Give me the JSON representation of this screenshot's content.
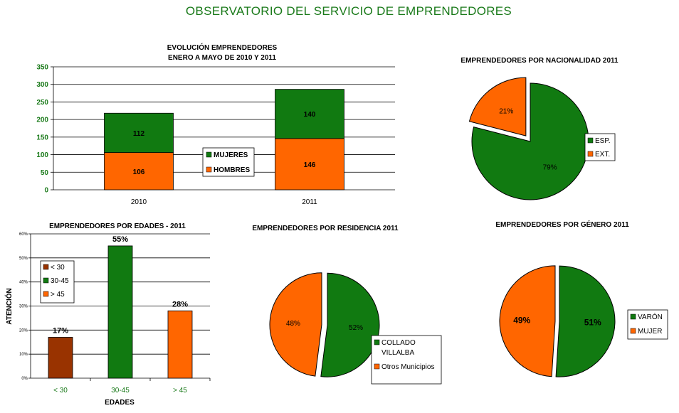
{
  "page_title": "OBSERVATORIO DEL SERVICIO DE EMPRENDEDORES",
  "colors": {
    "green": "#117a11",
    "orange": "#ff6600",
    "brown": "#993300",
    "axis_text_green": "#1a7a1a"
  },
  "chart_data": [
    {
      "id": "evolucion",
      "type": "bar",
      "stacked": true,
      "title": "EVOLUCIÓN  EMPRENDEDORES",
      "subtitle": "ENERO A MAYO  DE 2010 Y 2011",
      "categories": [
        "2010",
        "2011"
      ],
      "series": [
        {
          "name": "HOMBRES",
          "values": [
            106,
            146
          ],
          "color": "#ff6600"
        },
        {
          "name": "MUJERES",
          "values": [
            112,
            140
          ],
          "color": "#117a11"
        }
      ],
      "ylim": [
        0,
        350
      ],
      "yticks": [
        "0",
        "50",
        "100",
        "150",
        "200",
        "250",
        "300",
        "350"
      ],
      "legend": [
        {
          "name": "MUJERES",
          "color": "#117a11"
        },
        {
          "name": "HOMBRES",
          "color": "#ff6600"
        }
      ],
      "grid": true
    },
    {
      "id": "nacionalidad",
      "type": "pie",
      "title": "EMPRENDEDORES POR NACIONALIDAD 2011",
      "slices": [
        {
          "label": "ESP.",
          "value": 79,
          "text": "79%",
          "color": "#117a11"
        },
        {
          "label": "EXT.",
          "value": 21,
          "text": "21%",
          "color": "#ff6600"
        }
      ],
      "legend": [
        {
          "name": "ESP.",
          "color": "#117a11"
        },
        {
          "name": "EXT.",
          "color": "#ff6600"
        }
      ]
    },
    {
      "id": "edades",
      "type": "bar",
      "title": "EMPRENDEDORES POR EDADES - 2011",
      "xlabel": "EDADES",
      "ylabel": "ATENCIÓN",
      "categories": [
        "< 30",
        "30-45",
        "> 45"
      ],
      "values": [
        17,
        55,
        28
      ],
      "value_labels": [
        "17%",
        "55%",
        "28%"
      ],
      "colors": [
        "#993300",
        "#117a11",
        "#ff6600"
      ],
      "ylim": [
        0,
        60
      ],
      "yticks": [
        "0%",
        "10%",
        "20%",
        "30%",
        "40%",
        "50%",
        "60%"
      ],
      "legend": [
        {
          "name": "< 30",
          "color": "#993300"
        },
        {
          "name": "30-45",
          "color": "#117a11"
        },
        {
          "name": "> 45",
          "color": "#ff6600"
        }
      ]
    },
    {
      "id": "residencia",
      "type": "pie",
      "title": "EMPRENDEDORES POR RESIDENCIA 2011",
      "slices": [
        {
          "label": "COLLADO VILLALBA",
          "value": 52,
          "text": "52%",
          "color": "#117a11"
        },
        {
          "label": "Otros Municipios",
          "value": 48,
          "text": "48%",
          "color": "#ff6600"
        }
      ],
      "legend": [
        {
          "name_line1": "COLLADO",
          "name_line2": "VILLALBA",
          "color": "#117a11"
        },
        {
          "name": "Otros Municipios",
          "color": "#ff6600"
        }
      ]
    },
    {
      "id": "genero",
      "type": "pie",
      "title": "EMPRENDEDORES POR GÉNERO 2011",
      "slices": [
        {
          "label": "VARÓN",
          "value": 51,
          "text": "51%",
          "color": "#117a11"
        },
        {
          "label": "MUJER",
          "value": 49,
          "text": "49%",
          "color": "#ff6600"
        }
      ],
      "legend": [
        {
          "name": "VARÓN",
          "color": "#117a11"
        },
        {
          "name": "MUJER",
          "color": "#ff6600"
        }
      ]
    }
  ]
}
